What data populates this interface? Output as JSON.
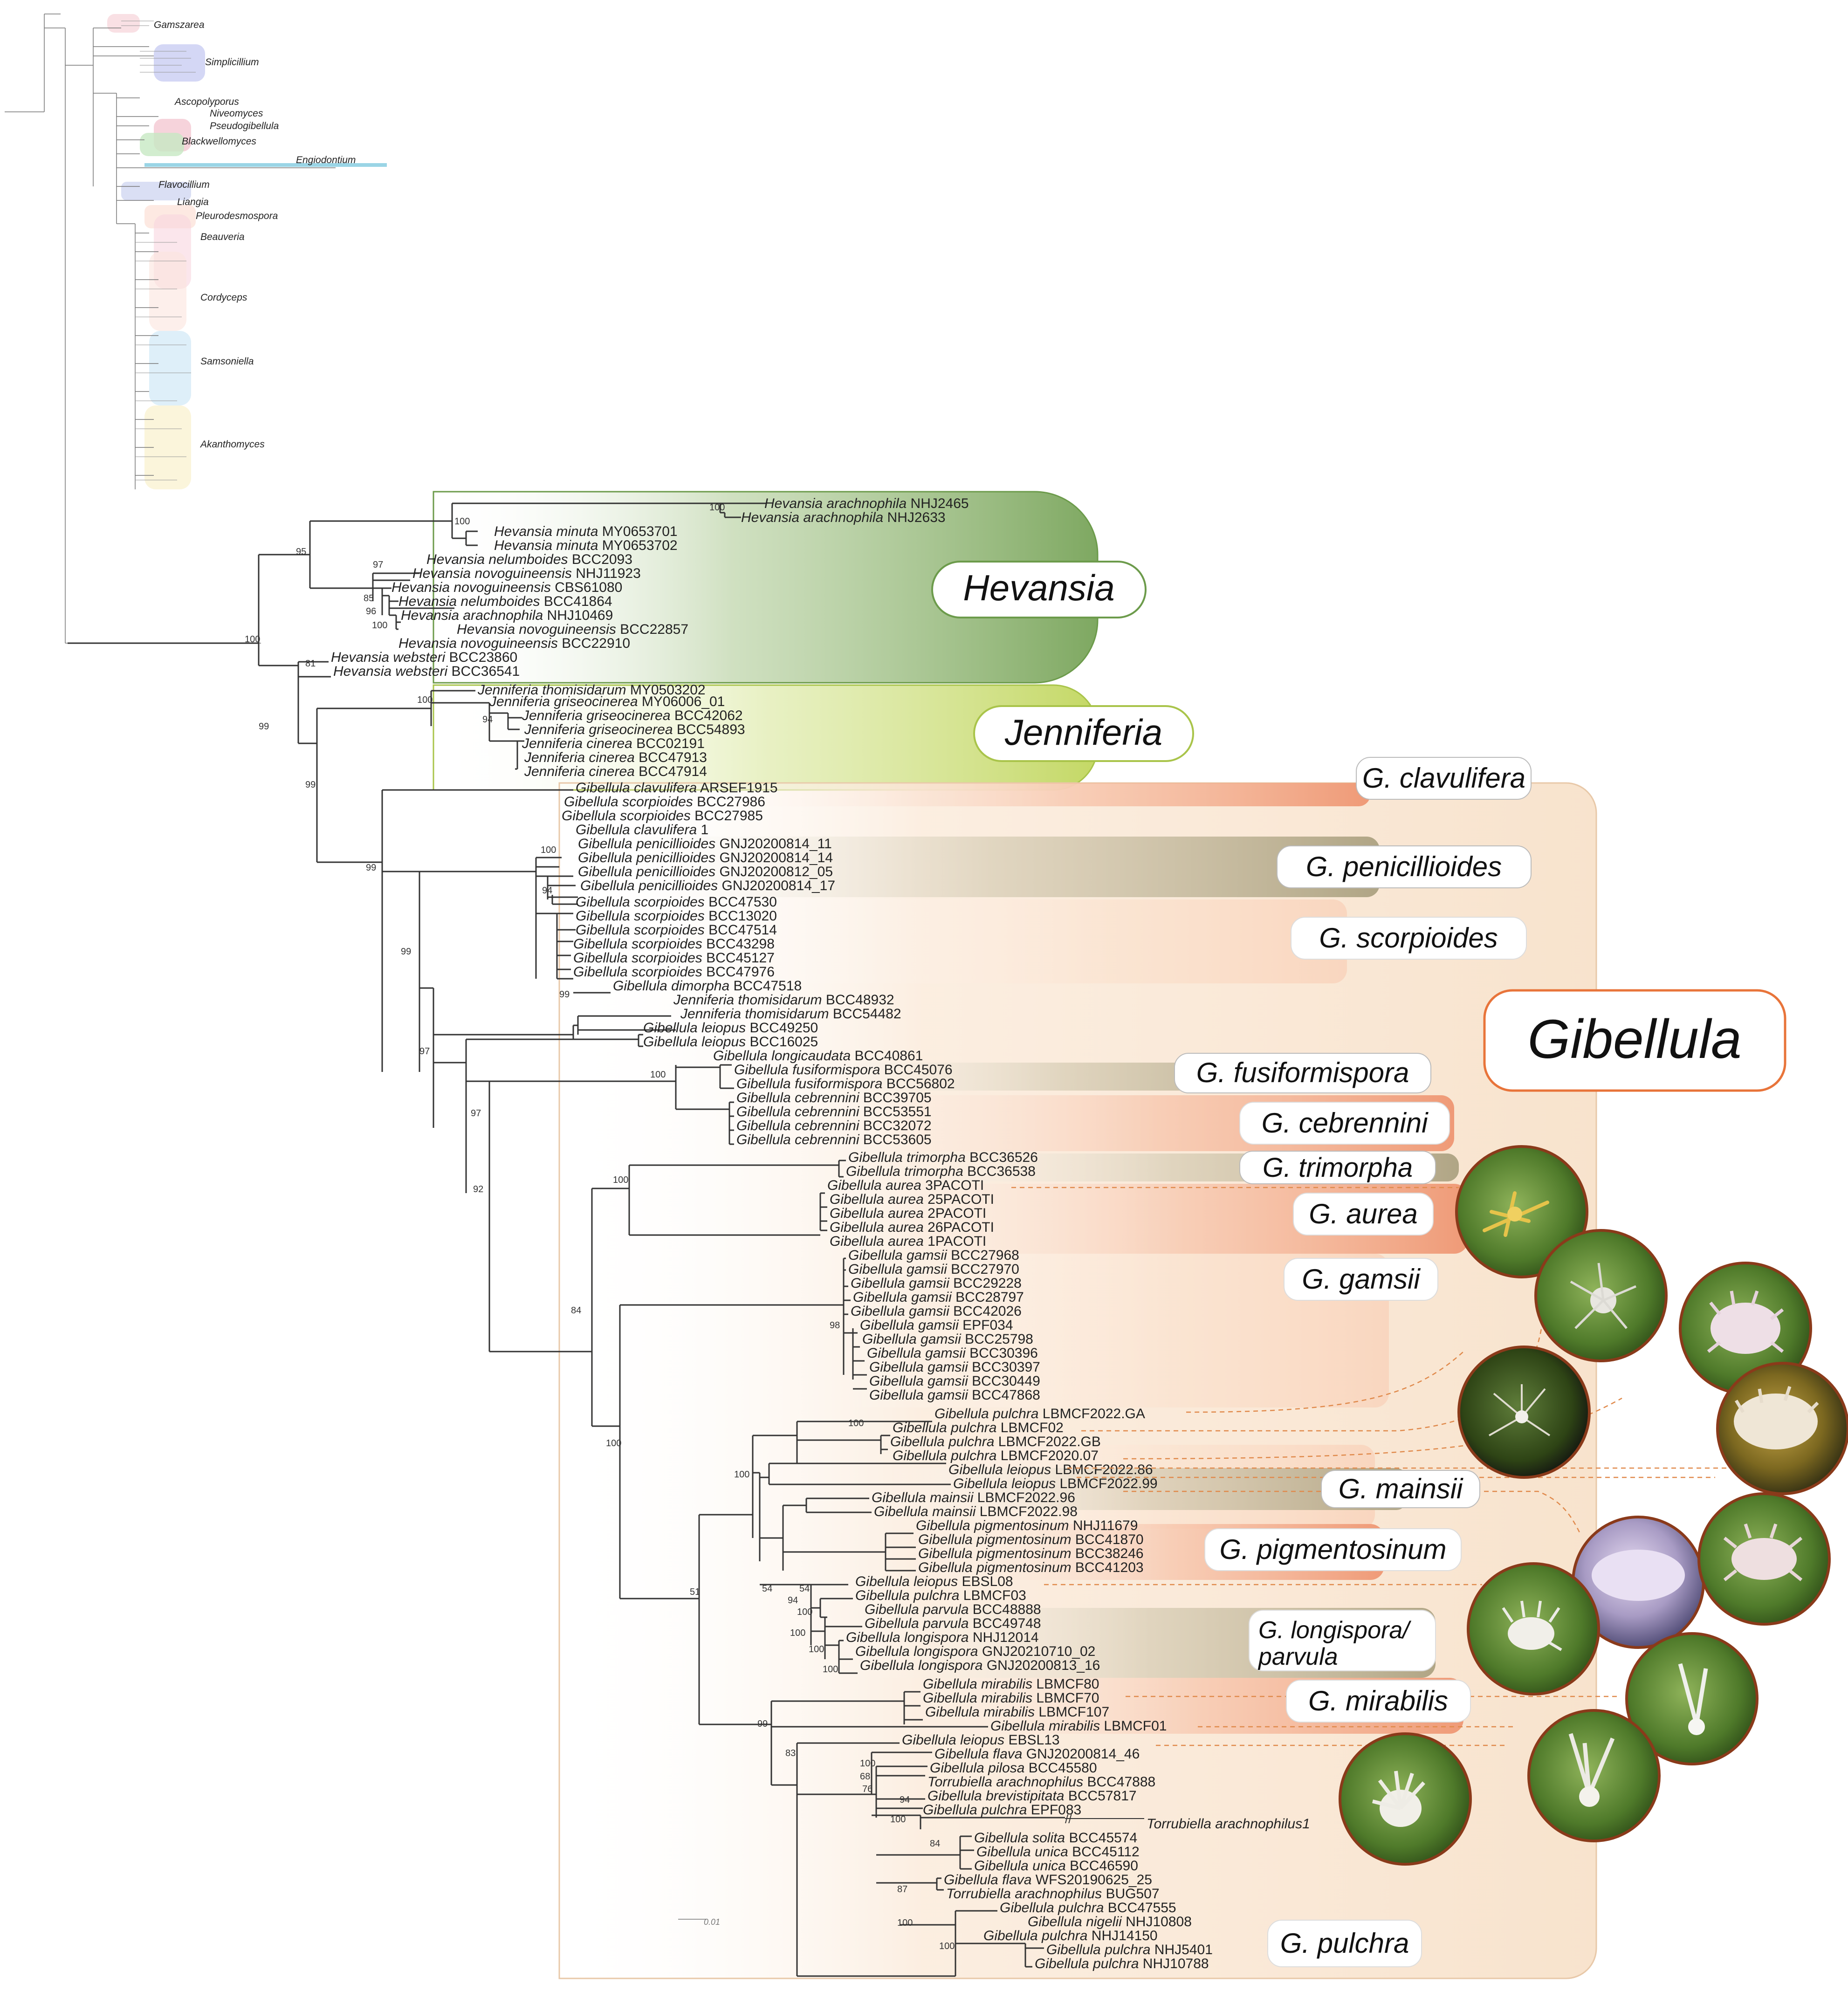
{
  "overview_genera": [
    "Gamszarea",
    "Simplicillium",
    "Ascopolyporus",
    "Niveomyces",
    "Pseudogibellula",
    "Blackwellomyces",
    "Engiodontium",
    "Flavocillium",
    "Liangia",
    "Pleurodesmospora",
    "Beauveria",
    "Cordyceps",
    "Samsoniella",
    "Akanthomyces"
  ],
  "clade_labels": {
    "hevansia": "Hevansia",
    "jenniferia": "Jenniferia",
    "gibellula": "Gibellula",
    "clavulifera": "G. clavulifera",
    "penicillioides": "G. penicillioides",
    "scorpioides": "G. scorpioides",
    "fusiformispora": "G. fusiformispora",
    "cebrennini": "G. cebrennini",
    "trimorpha": "G. trimorpha",
    "aurea": "G. aurea",
    "gamsii": "G. gamsii",
    "mainsii": "G. mainsii",
    "pigmentosinum": "G. pigmentosinum",
    "longispora_1": "G. longispora/",
    "longispora_2": "parvula",
    "mirabilis": "G. mirabilis",
    "pulchra": "G. pulchra"
  },
  "scale_label": "0.01",
  "colors": {
    "hevansia": "#7aa35b",
    "jenniferia": "#b7cf4e",
    "gibellula_box": "#f8e5cf",
    "orange": "#e8743a",
    "tan": "#a79c7e",
    "line": "#e08a4c"
  },
  "taxa": [
    {
      "sp": "Hevansia arachnophila",
      "st": "NHJ2465"
    },
    {
      "sp": "Hevansia arachnophila",
      "st": "NHJ2633"
    },
    {
      "sp": "Hevansia minuta",
      "st": "MY0653701"
    },
    {
      "sp": "Hevansia minuta",
      "st": "MY0653702"
    },
    {
      "sp": "Hevansia nelumboides",
      "st": "BCC2093"
    },
    {
      "sp": "Hevansia novoguineensis",
      "st": "NHJ11923"
    },
    {
      "sp": "Hevansia novoguineensis",
      "st": "CBS61080"
    },
    {
      "sp": "Hevansia nelumboides",
      "st": "BCC41864"
    },
    {
      "sp": "Hevansia arachnophila",
      "st": "NHJ10469"
    },
    {
      "sp": "Hevansia novoguineensis",
      "st": "BCC22857"
    },
    {
      "sp": "Hevansia novoguineensis",
      "st": "BCC22910"
    },
    {
      "sp": "Hevansia websteri",
      "st": "BCC23860"
    },
    {
      "sp": "Hevansia websteri",
      "st": "BCC36541"
    },
    {
      "sp": "Jenniferia thomisidarum",
      "st": "MY0503202"
    },
    {
      "sp": "Jenniferia griseocinerea",
      "st": "MY06006_01"
    },
    {
      "sp": "Jenniferia griseocinerea",
      "st": "BCC42062"
    },
    {
      "sp": "Jenniferia griseocinerea",
      "st": "BCC54893"
    },
    {
      "sp": "Jenniferia cinerea",
      "st": "BCC02191"
    },
    {
      "sp": "Jenniferia cinerea",
      "st": "BCC47913"
    },
    {
      "sp": "Jenniferia cinerea",
      "st": "BCC47914"
    },
    {
      "sp": "Gibellula clavulifera",
      "st": "ARSEF1915"
    },
    {
      "sp": "Gibellula scorpioides",
      "st": "BCC27986"
    },
    {
      "sp": "Gibellula scorpioides",
      "st": "BCC27985"
    },
    {
      "sp": "Gibellula clavulifera",
      "st": "1"
    },
    {
      "sp": "Gibellula penicillioides",
      "st": "GNJ20200814_11"
    },
    {
      "sp": "Gibellula penicillioides",
      "st": "GNJ20200814_14"
    },
    {
      "sp": "Gibellula penicillioides",
      "st": "GNJ20200812_05"
    },
    {
      "sp": "Gibellula penicillioides",
      "st": "GNJ20200814_17"
    },
    {
      "sp": "Gibellula scorpioides",
      "st": "BCC47530"
    },
    {
      "sp": "Gibellula scorpioides",
      "st": "BCC13020"
    },
    {
      "sp": "Gibellula scorpioides",
      "st": "BCC47514"
    },
    {
      "sp": "Gibellula scorpioides",
      "st": "BCC43298"
    },
    {
      "sp": "Gibellula scorpioides",
      "st": "BCC45127"
    },
    {
      "sp": "Gibellula scorpioides",
      "st": "BCC47976"
    },
    {
      "sp": "Gibellula dimorpha",
      "st": "BCC47518"
    },
    {
      "sp": "Jenniferia thomisidarum",
      "st": "BCC48932"
    },
    {
      "sp": "Jenniferia thomisidarum",
      "st": "BCC54482"
    },
    {
      "sp": "Gibellula leiopus",
      "st": "BCC49250"
    },
    {
      "sp": "Gibellula leiopus",
      "st": "BCC16025"
    },
    {
      "sp": "Gibellula longicaudata",
      "st": "BCC40861"
    },
    {
      "sp": "Gibellula fusiformispora",
      "st": "BCC45076"
    },
    {
      "sp": "Gibellula fusiformispora",
      "st": "BCC56802"
    },
    {
      "sp": "Gibellula cebrennini",
      "st": "BCC39705"
    },
    {
      "sp": "Gibellula cebrennini",
      "st": "BCC53551"
    },
    {
      "sp": "Gibellula cebrennini",
      "st": "BCC32072"
    },
    {
      "sp": "Gibellula cebrennini",
      "st": "BCC53605"
    },
    {
      "sp": "Gibellula trimorpha",
      "st": "BCC36526"
    },
    {
      "sp": "Gibellula trimorpha",
      "st": "BCC36538"
    },
    {
      "sp": "Gibellula aurea",
      "st": "3PACOTI"
    },
    {
      "sp": "Gibellula aurea",
      "st": "25PACOTI"
    },
    {
      "sp": "Gibellula aurea",
      "st": "2PACOTI"
    },
    {
      "sp": "Gibellula aurea",
      "st": "26PACOTI"
    },
    {
      "sp": "Gibellula aurea",
      "st": "1PACOTI"
    },
    {
      "sp": "Gibellula gamsii",
      "st": "BCC27968"
    },
    {
      "sp": "Gibellula gamsii",
      "st": "BCC27970"
    },
    {
      "sp": "Gibellula gamsii",
      "st": "BCC29228"
    },
    {
      "sp": "Gibellula gamsii",
      "st": "BCC28797"
    },
    {
      "sp": "Gibellula gamsii",
      "st": "BCC42026"
    },
    {
      "sp": "Gibellula gamsii",
      "st": "EPF034"
    },
    {
      "sp": "Gibellula gamsii",
      "st": "BCC25798"
    },
    {
      "sp": "Gibellula gamsii",
      "st": "BCC30396"
    },
    {
      "sp": "Gibellula gamsii",
      "st": "BCC30397"
    },
    {
      "sp": "Gibellula gamsii",
      "st": "BCC30449"
    },
    {
      "sp": "Gibellula gamsii",
      "st": "BCC47868"
    },
    {
      "sp": "Gibellula pulchra",
      "st": "LBMCF2022.GA"
    },
    {
      "sp": "Gibellula pulchra",
      "st": "LBMCF02"
    },
    {
      "sp": "Gibellula pulchra",
      "st": "LBMCF2022.GB"
    },
    {
      "sp": "Gibellula pulchra",
      "st": "LBMCF2020.07"
    },
    {
      "sp": "Gibellula leiopus",
      "st": "LBMCF2022.86"
    },
    {
      "sp": "Gibellula leiopus",
      "st": "LBMCF2022.99"
    },
    {
      "sp": "Gibellula mainsii",
      "st": "LBMCF2022.96"
    },
    {
      "sp": "Gibellula mainsii",
      "st": "LBMCF2022.98"
    },
    {
      "sp": "Gibellula pigmentosinum",
      "st": "NHJ11679"
    },
    {
      "sp": "Gibellula pigmentosinum",
      "st": "BCC41870"
    },
    {
      "sp": "Gibellula pigmentosinum",
      "st": "BCC38246"
    },
    {
      "sp": "Gibellula pigmentosinum",
      "st": "BCC41203"
    },
    {
      "sp": "Gibellula leiopus",
      "st": "EBSL08"
    },
    {
      "sp": "Gibellula pulchra",
      "st": "LBMCF03"
    },
    {
      "sp": "Gibellula parvula",
      "st": "BCC48888"
    },
    {
      "sp": "Gibellula parvula",
      "st": "BCC49748"
    },
    {
      "sp": "Gibellula longispora",
      "st": "NHJ12014"
    },
    {
      "sp": "Gibellula longispora",
      "st": "GNJ20210710_02"
    },
    {
      "sp": "Gibellula longispora",
      "st": "GNJ20200813_16"
    },
    {
      "sp": "Gibellula mirabilis",
      "st": "LBMCF80"
    },
    {
      "sp": "Gibellula mirabilis",
      "st": "LBMCF70"
    },
    {
      "sp": "Gibellula mirabilis",
      "st": "LBMCF107"
    },
    {
      "sp": "Gibellula mirabilis",
      "st": "LBMCF01"
    },
    {
      "sp": "Gibellula leiopus",
      "st": "EBSL13"
    },
    {
      "sp": "Gibellula flava",
      "st": "GNJ20200814_46"
    },
    {
      "sp": "Gibellula pilosa",
      "st": "BCC45580"
    },
    {
      "sp": "Torrubiella arachnophilus",
      "st": "BCC47888"
    },
    {
      "sp": "Gibellula brevistipitata",
      "st": "BCC57817"
    },
    {
      "sp": "Gibellula pulchra",
      "st": "EPF083"
    },
    {
      "sp": "Torrubiella arachnophilus1",
      "st": ""
    },
    {
      "sp": "Gibellula solita",
      "st": "BCC45574"
    },
    {
      "sp": "Gibellula unica",
      "st": "BCC45112"
    },
    {
      "sp": "Gibellula unica",
      "st": "BCC46590"
    },
    {
      "sp": "Gibellula flava",
      "st": "WFS20190625_25"
    },
    {
      "sp": "Torrubiella arachnophilus",
      "st": "BUG507"
    },
    {
      "sp": "Gibellula pulchra",
      "st": "BCC47555"
    },
    {
      "sp": "Gibellula nigelii",
      "st": "NHJ10808"
    },
    {
      "sp": "Gibellula pulchra",
      "st": "NHJ14150"
    },
    {
      "sp": "Gibellula pulchra",
      "st": "NHJ5401"
    },
    {
      "sp": "Gibellula pulchra",
      "st": "NHJ10788"
    }
  ],
  "support": [
    {
      "v": "100",
      "n": "n1"
    },
    {
      "v": "95",
      "n": "n2"
    },
    {
      "v": "97",
      "n": "n3"
    },
    {
      "v": "85",
      "n": "n4"
    },
    {
      "v": "96",
      "n": "n5"
    },
    {
      "v": "100",
      "n": "n6"
    },
    {
      "v": "100",
      "n": "n7"
    },
    {
      "v": "100",
      "n": "n8"
    },
    {
      "v": "81",
      "n": "n9"
    },
    {
      "v": "99",
      "n": "n10"
    },
    {
      "v": "100",
      "n": "n11"
    },
    {
      "v": "94",
      "n": "n12"
    },
    {
      "v": "99",
      "n": "n13"
    },
    {
      "v": "100",
      "n": "n14"
    },
    {
      "v": "94",
      "n": "n15"
    },
    {
      "v": "99",
      "n": "n16"
    },
    {
      "v": "99",
      "n": "n17"
    },
    {
      "v": "99",
      "n": "n18"
    },
    {
      "v": "100",
      "n": "n19"
    },
    {
      "v": "97",
      "n": "n20"
    },
    {
      "v": "97",
      "n": "n21"
    },
    {
      "v": "92",
      "n": "n22"
    },
    {
      "v": "100",
      "n": "n23"
    },
    {
      "v": "84",
      "n": "n24"
    },
    {
      "v": "98",
      "n": "n25"
    },
    {
      "v": "100",
      "n": "n26"
    },
    {
      "v": "100",
      "n": "n27"
    },
    {
      "v": "100",
      "n": "n28"
    },
    {
      "v": "54",
      "n": "n29"
    },
    {
      "v": "54",
      "n": "n30"
    },
    {
      "v": "94",
      "n": "n31"
    },
    {
      "v": "51",
      "n": "n32"
    },
    {
      "v": "100",
      "n": "n33"
    },
    {
      "v": "100",
      "n": "n34"
    },
    {
      "v": "100",
      "n": "n35"
    },
    {
      "v": "100",
      "n": "n36"
    },
    {
      "v": "99",
      "n": "n37"
    },
    {
      "v": "83",
      "n": "n38"
    },
    {
      "v": "100",
      "n": "n39"
    },
    {
      "v": "68",
      "n": "n40"
    },
    {
      "v": "76",
      "n": "n41"
    },
    {
      "v": "94",
      "n": "n42"
    },
    {
      "v": "100",
      "n": "n43"
    },
    {
      "v": "84",
      "n": "n44"
    },
    {
      "v": "87",
      "n": "n45"
    },
    {
      "v": "100",
      "n": "n46"
    },
    {
      "v": "100",
      "n": "n47"
    }
  ]
}
